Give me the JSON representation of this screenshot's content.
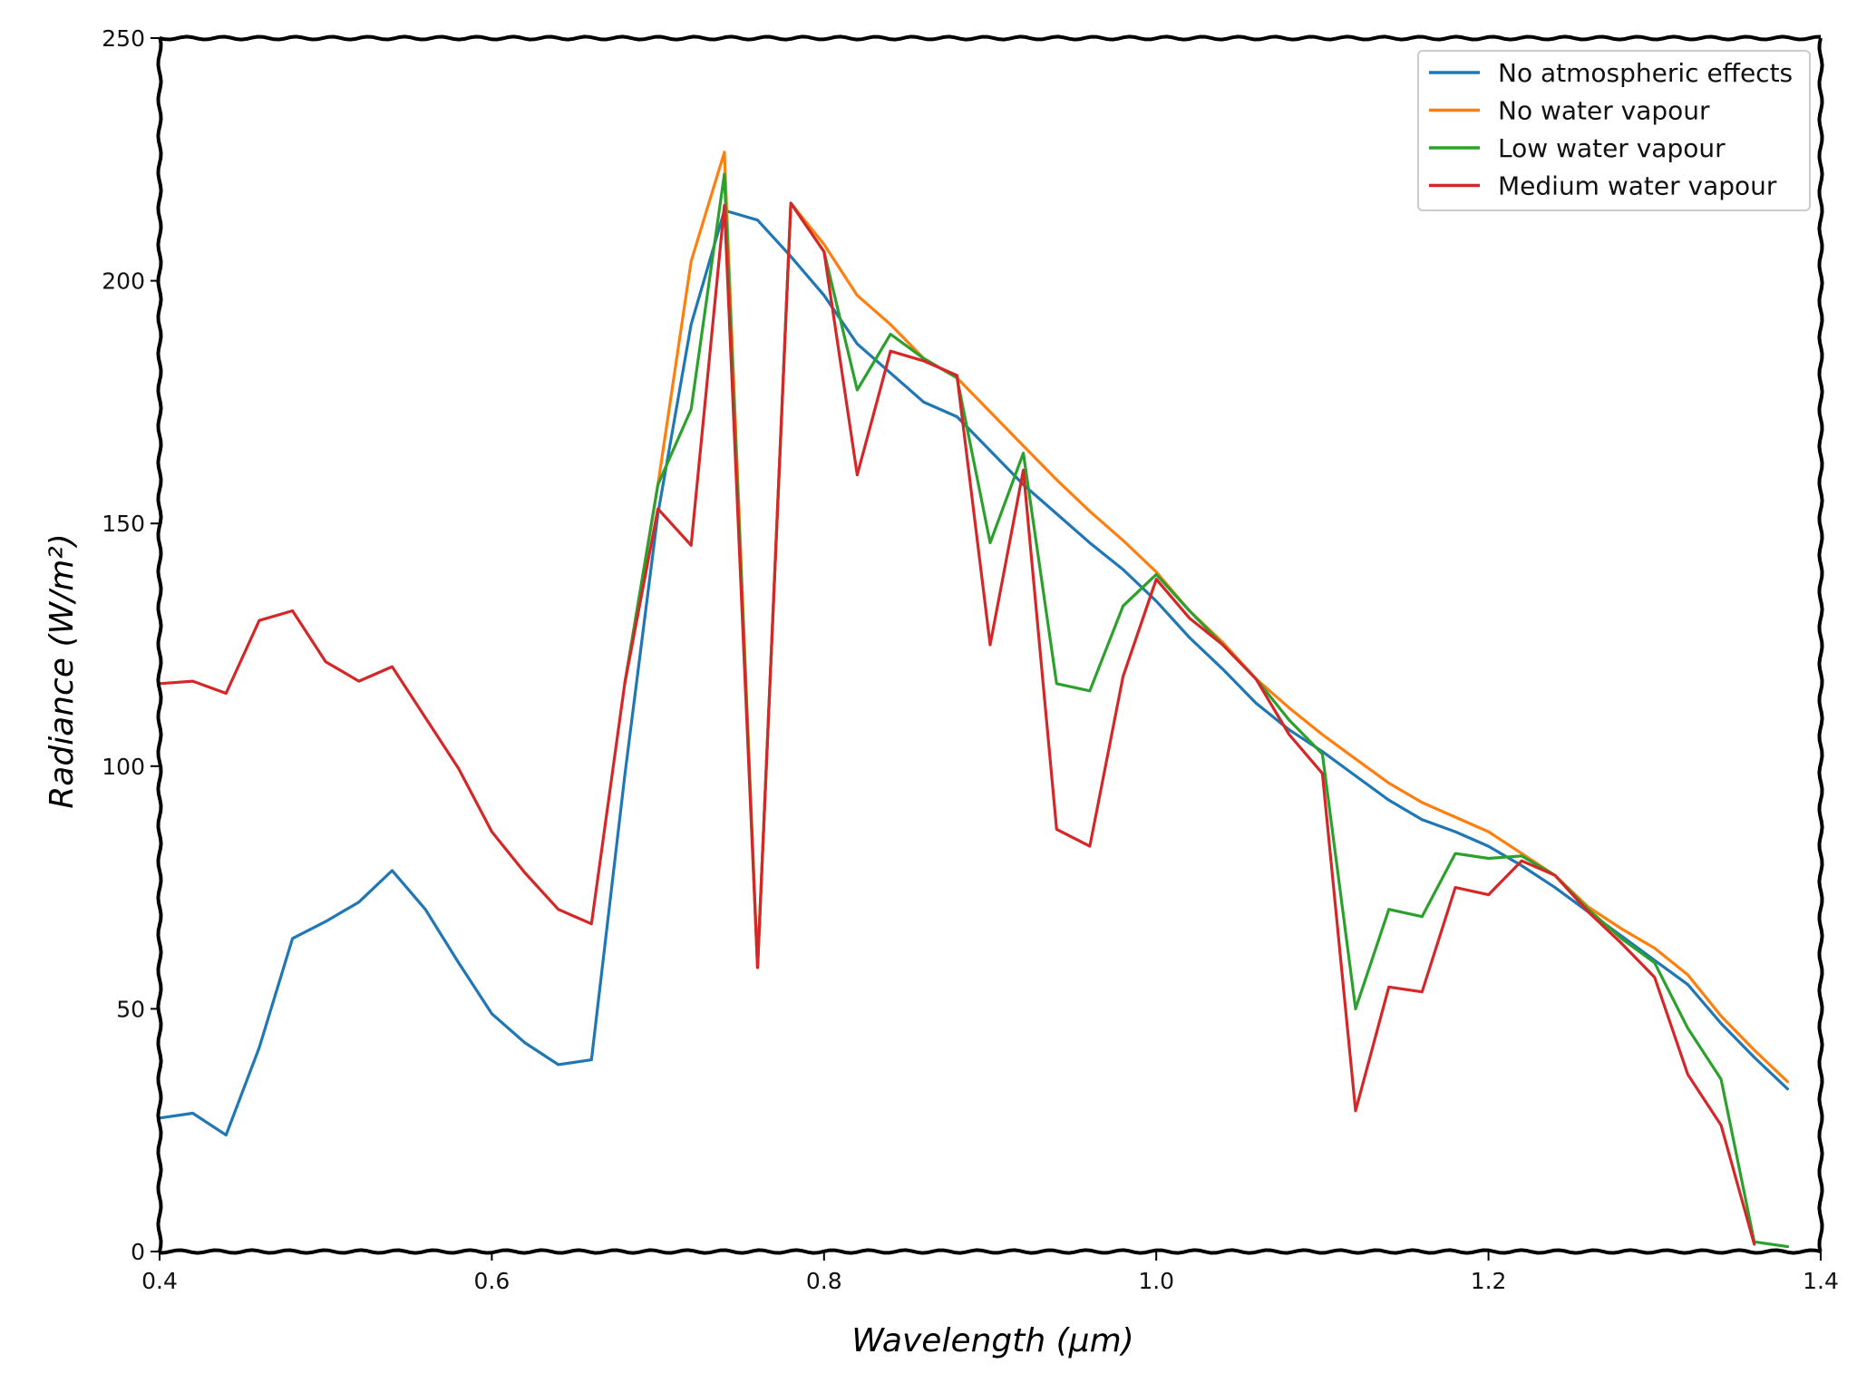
{
  "chart_data": {
    "type": "line",
    "title": "",
    "xlabel": "Wavelength (μm)",
    "ylabel": "Radiance (W/m²)",
    "xlim": [
      0.4,
      1.4
    ],
    "ylim": [
      0,
      250
    ],
    "x_ticks": [
      0.4,
      0.6,
      0.8,
      1.0,
      1.2,
      1.4
    ],
    "x_tick_labels": [
      "0.4",
      "0.6",
      "0.8",
      "1.0",
      "1.2",
      "1.4"
    ],
    "y_ticks": [
      0,
      50,
      100,
      150,
      200,
      250
    ],
    "y_tick_labels": [
      "0",
      "50",
      "100",
      "150",
      "200",
      "250"
    ],
    "grid": false,
    "legend_position": "top-right",
    "series": [
      {
        "name": "No atmospheric effects",
        "color": "#1f77b4",
        "x": [
          0.4,
          0.42,
          0.44,
          0.46,
          0.48,
          0.5,
          0.52,
          0.54,
          0.56,
          0.58,
          0.6,
          0.62,
          0.64,
          0.66,
          0.68,
          0.7,
          0.72,
          0.74,
          0.76,
          0.78,
          0.8,
          0.82,
          0.84,
          0.86,
          0.88,
          0.9,
          0.92,
          0.94,
          0.96,
          0.98,
          1.0,
          1.02,
          1.04,
          1.06,
          1.08,
          1.1,
          1.12,
          1.14,
          1.16,
          1.18,
          1.2,
          1.22,
          1.24,
          1.26,
          1.28,
          1.3,
          1.32,
          1.34,
          1.36,
          1.38
        ],
        "y": [
          27.5,
          28.5,
          24,
          42,
          64.5,
          68,
          72,
          78.5,
          70.5,
          59.5,
          49,
          43,
          38.5,
          39.5,
          98,
          152,
          191,
          214.5,
          212.5,
          205,
          197,
          187,
          181,
          175,
          172,
          165,
          158,
          152,
          146,
          140.5,
          134,
          126.5,
          120,
          113,
          107.5,
          103,
          98,
          93,
          89,
          86.5,
          83.5,
          79.5,
          75,
          70,
          65,
          60,
          55,
          47,
          40,
          33.5
        ]
      },
      {
        "name": "No water vapour",
        "color": "#ff7f0e",
        "x": [
          0.68,
          0.7,
          0.72,
          0.74,
          0.76,
          0.78,
          0.8,
          0.82,
          0.84,
          0.86,
          0.88,
          0.9,
          0.92,
          0.94,
          0.96,
          0.98,
          1.0,
          1.02,
          1.04,
          1.06,
          1.08,
          1.1,
          1.12,
          1.14,
          1.16,
          1.18,
          1.2,
          1.22,
          1.24,
          1.26,
          1.28,
          1.3,
          1.32,
          1.34,
          1.36,
          1.38
        ],
        "y": [
          117,
          158,
          204,
          226.5,
          58.5,
          216,
          207.5,
          197,
          191,
          184,
          180,
          173,
          166,
          159,
          152.5,
          146.5,
          140,
          132,
          125.5,
          118,
          112,
          106.5,
          101.5,
          96.5,
          92.5,
          89.5,
          86.5,
          82,
          77.5,
          71,
          66.5,
          62.5,
          57,
          48.5,
          41.5,
          35
        ]
      },
      {
        "name": "Low water vapour",
        "color": "#2ca02c",
        "x": [
          0.68,
          0.7,
          0.72,
          0.74,
          0.76,
          0.78,
          0.8,
          0.82,
          0.84,
          0.86,
          0.88,
          0.9,
          0.92,
          0.94,
          0.96,
          0.98,
          1.0,
          1.02,
          1.04,
          1.06,
          1.08,
          1.1,
          1.12,
          1.14,
          1.16,
          1.18,
          1.2,
          1.22,
          1.24,
          1.26,
          1.28,
          1.3,
          1.32,
          1.34,
          1.36,
          1.38
        ],
        "y": [
          117,
          158,
          173.5,
          222,
          58.5,
          216,
          206,
          177.5,
          189,
          184,
          180,
          146,
          164.5,
          117,
          115.5,
          133,
          139.5,
          132,
          125,
          118,
          109.5,
          102.5,
          50,
          70.5,
          69,
          82,
          81,
          81.5,
          77.5,
          70.5,
          64.5,
          59.5,
          46,
          35.5,
          2,
          1
        ]
      },
      {
        "name": "Medium water vapour",
        "color": "#d62728",
        "x": [
          0.4,
          0.42,
          0.44,
          0.46,
          0.48,
          0.5,
          0.52,
          0.54,
          0.56,
          0.58,
          0.6,
          0.62,
          0.64,
          0.66,
          0.68,
          0.7,
          0.72,
          0.74,
          0.76,
          0.78,
          0.8,
          0.82,
          0.84,
          0.86,
          0.88,
          0.9,
          0.92,
          0.94,
          0.96,
          0.98,
          1.0,
          1.02,
          1.04,
          1.06,
          1.08,
          1.1,
          1.12,
          1.14,
          1.16,
          1.18,
          1.2,
          1.22,
          1.24,
          1.26,
          1.28,
          1.3,
          1.32,
          1.34,
          1.36
        ],
        "y": [
          117,
          117.5,
          115,
          130,
          132,
          121.5,
          117.5,
          120.5,
          110,
          99.5,
          86.5,
          78,
          70.5,
          67.5,
          117,
          153,
          145.5,
          215.5,
          58.5,
          216,
          206,
          160,
          185.5,
          183.5,
          180.5,
          125,
          161,
          87,
          83.5,
          118.5,
          138.5,
          130.5,
          125,
          118,
          106.5,
          98.5,
          29,
          54.5,
          53.5,
          75,
          73.5,
          80.5,
          77.5,
          70,
          63.5,
          56.5,
          36.5,
          26,
          1.5
        ]
      }
    ]
  }
}
